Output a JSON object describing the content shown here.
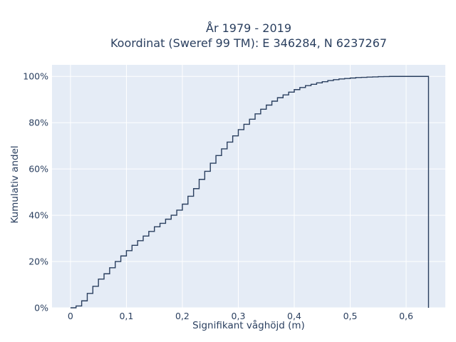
{
  "chart_data": {
    "type": "line",
    "line_shape": "step",
    "title": [
      "År 1979 - 2019",
      "Koordinat (Sweref 99 TM): E 346284, N 6237267"
    ],
    "xlabel": "Signifikant våghöjd (m)",
    "ylabel": "Kumulativ andel",
    "xlim": [
      -0.033,
      0.67
    ],
    "ylim": [
      0,
      1.05
    ],
    "xticks": [
      0,
      0.1,
      0.2,
      0.3,
      0.4,
      0.5,
      0.6
    ],
    "xtick_labels": [
      "0",
      "0,1",
      "0,2",
      "0,3",
      "0,4",
      "0,5",
      "0,6"
    ],
    "yticks": [
      0,
      0.2,
      0.4,
      0.6,
      0.8,
      1.0
    ],
    "ytick_labels": [
      "0%",
      "20%",
      "40%",
      "60%",
      "80%",
      "100%"
    ],
    "grid": true,
    "colors": {
      "line": "#2a3f5f",
      "plot_bg": "#e5ecf6",
      "grid": "#ffffff",
      "text": "#2a3f5f"
    },
    "series": [
      {
        "x": [
          0,
          0.01,
          0.02,
          0.03,
          0.04,
          0.05,
          0.06,
          0.07,
          0.08,
          0.09,
          0.1,
          0.11,
          0.12,
          0.13,
          0.14,
          0.15,
          0.16,
          0.17,
          0.18,
          0.19,
          0.2,
          0.21,
          0.22,
          0.23,
          0.24,
          0.25,
          0.26,
          0.27,
          0.28,
          0.29,
          0.3,
          0.31,
          0.32,
          0.33,
          0.34,
          0.35,
          0.36,
          0.37,
          0.38,
          0.39,
          0.4,
          0.41,
          0.42,
          0.43,
          0.44,
          0.45,
          0.46,
          0.47,
          0.48,
          0.49,
          0.5,
          0.51,
          0.52,
          0.53,
          0.54,
          0.55,
          0.56,
          0.57,
          0.58,
          0.59,
          0.6,
          0.61,
          0.62,
          0.63,
          0.64
        ],
        "y": [
          0.0,
          0.008,
          0.03,
          0.062,
          0.093,
          0.124,
          0.147,
          0.173,
          0.2,
          0.224,
          0.247,
          0.27,
          0.29,
          0.31,
          0.33,
          0.35,
          0.365,
          0.383,
          0.4,
          0.422,
          0.448,
          0.482,
          0.515,
          0.555,
          0.59,
          0.625,
          0.658,
          0.687,
          0.716,
          0.743,
          0.77,
          0.793,
          0.815,
          0.838,
          0.858,
          0.876,
          0.893,
          0.908,
          0.92,
          0.932,
          0.943,
          0.952,
          0.96,
          0.966,
          0.972,
          0.977,
          0.982,
          0.986,
          0.989,
          0.991,
          0.993,
          0.995,
          0.996,
          0.997,
          0.998,
          0.999,
          0.9995,
          1.0,
          1.0,
          1.0,
          1.0,
          1.0,
          1.0,
          1.0,
          0.0
        ]
      }
    ]
  }
}
